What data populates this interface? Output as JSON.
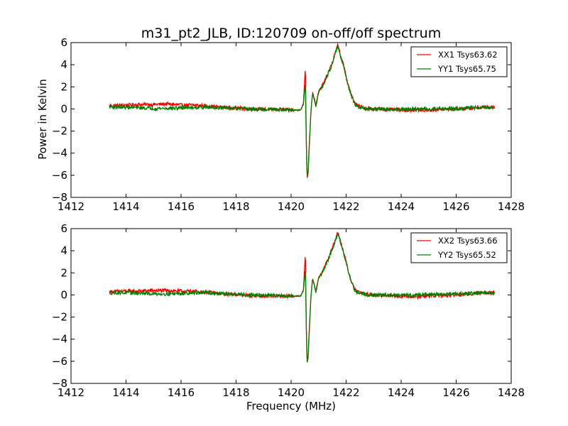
{
  "title": "m31_pt2_JLB, ID:120709 on-off/off spectrum",
  "ylabel": "Power in Kelvin",
  "xlabel": "Frequency (MHz)",
  "chart_data": [
    {
      "type": "line",
      "xlim": [
        1412,
        1428
      ],
      "ylim": [
        -8,
        6
      ],
      "xticks": [
        1412,
        1414,
        1416,
        1418,
        1420,
        1422,
        1424,
        1426,
        1428
      ],
      "yticks": [
        -8,
        -6,
        -4,
        -2,
        0,
        2,
        4,
        6
      ],
      "legend_position": "top-right",
      "grid": false,
      "series": [
        {
          "name": "XX1 Tsys63.62",
          "color": "#ff0000",
          "x": [
            1413.4,
            1414.0,
            1414.5,
            1415.0,
            1415.5,
            1416.0,
            1416.5,
            1417.0,
            1417.5,
            1418.0,
            1418.5,
            1419.0,
            1419.5,
            1420.0,
            1420.35,
            1420.45,
            1420.52,
            1420.55,
            1420.58,
            1420.62,
            1420.66,
            1420.72,
            1420.78,
            1420.84,
            1420.9,
            1421.0,
            1421.1,
            1421.2,
            1421.3,
            1421.4,
            1421.5,
            1421.6,
            1421.7,
            1421.8,
            1421.9,
            1422.0,
            1422.1,
            1422.2,
            1422.3,
            1422.4,
            1422.6,
            1422.8,
            1423.0,
            1423.5,
            1424.0,
            1424.5,
            1425.0,
            1425.5,
            1426.0,
            1426.5,
            1427.0,
            1427.4
          ],
          "y": [
            0.3,
            0.35,
            0.4,
            0.4,
            0.45,
            0.35,
            0.35,
            0.25,
            0.15,
            0.1,
            0.0,
            -0.05,
            -0.05,
            -0.1,
            -0.1,
            0.5,
            4.0,
            -2.5,
            -6.3,
            -5.8,
            -3.5,
            -0.3,
            1.5,
            1.0,
            0.3,
            1.6,
            2.0,
            2.4,
            3.0,
            3.6,
            4.2,
            5.0,
            5.8,
            4.8,
            4.0,
            3.0,
            2.0,
            1.2,
            0.6,
            0.3,
            0.15,
            0.05,
            0.0,
            -0.05,
            -0.1,
            -0.1,
            -0.1,
            -0.05,
            0.0,
            0.05,
            0.15,
            0.2
          ]
        },
        {
          "name": "YY1 Tsys65.75",
          "color": "#008000",
          "x": [
            1413.4,
            1414.0,
            1414.5,
            1415.0,
            1415.5,
            1416.0,
            1416.5,
            1417.0,
            1417.5,
            1418.0,
            1418.5,
            1419.0,
            1419.5,
            1420.0,
            1420.35,
            1420.45,
            1420.52,
            1420.55,
            1420.58,
            1420.62,
            1420.66,
            1420.72,
            1420.78,
            1420.84,
            1420.9,
            1421.0,
            1421.1,
            1421.2,
            1421.3,
            1421.4,
            1421.5,
            1421.6,
            1421.7,
            1421.8,
            1421.9,
            1422.0,
            1422.1,
            1422.2,
            1422.3,
            1422.4,
            1422.6,
            1422.8,
            1423.0,
            1423.5,
            1424.0,
            1424.5,
            1425.0,
            1425.5,
            1426.0,
            1426.5,
            1427.0,
            1427.4
          ],
          "y": [
            0.2,
            0.15,
            0.1,
            0.05,
            0.05,
            0.1,
            0.15,
            0.15,
            0.1,
            0.05,
            0.0,
            -0.05,
            -0.05,
            -0.1,
            -0.1,
            0.4,
            2.5,
            -2.8,
            -6.2,
            -5.5,
            -3.2,
            -0.2,
            1.4,
            0.9,
            0.2,
            1.5,
            1.9,
            2.3,
            2.9,
            3.5,
            4.1,
            5.0,
            5.7,
            4.7,
            3.9,
            2.9,
            1.9,
            1.1,
            0.5,
            0.25,
            0.1,
            0.0,
            0.0,
            -0.05,
            -0.05,
            0.0,
            0.0,
            0.05,
            0.05,
            0.1,
            0.15,
            0.1
          ]
        }
      ]
    },
    {
      "type": "line",
      "xlim": [
        1412,
        1428
      ],
      "ylim": [
        -8,
        6
      ],
      "xticks": [
        1412,
        1414,
        1416,
        1418,
        1420,
        1422,
        1424,
        1426,
        1428
      ],
      "yticks": [
        -8,
        -6,
        -4,
        -2,
        0,
        2,
        4,
        6
      ],
      "legend_position": "top-right",
      "grid": false,
      "series": [
        {
          "name": "XX2 Tsys63.66",
          "color": "#ff0000",
          "x": [
            1413.4,
            1414.0,
            1414.5,
            1415.0,
            1415.5,
            1416.0,
            1416.5,
            1417.0,
            1417.5,
            1418.0,
            1418.5,
            1419.0,
            1419.5,
            1420.0,
            1420.35,
            1420.45,
            1420.52,
            1420.55,
            1420.58,
            1420.62,
            1420.66,
            1420.72,
            1420.78,
            1420.84,
            1420.9,
            1421.0,
            1421.1,
            1421.2,
            1421.3,
            1421.4,
            1421.5,
            1421.6,
            1421.7,
            1421.8,
            1421.9,
            1422.0,
            1422.1,
            1422.2,
            1422.3,
            1422.4,
            1422.6,
            1422.8,
            1423.0,
            1423.5,
            1424.0,
            1424.5,
            1425.0,
            1425.5,
            1426.0,
            1426.5,
            1427.0,
            1427.4
          ],
          "y": [
            0.3,
            0.35,
            0.35,
            0.4,
            0.4,
            0.35,
            0.3,
            0.25,
            0.1,
            0.05,
            -0.05,
            -0.1,
            -0.1,
            -0.1,
            -0.1,
            0.5,
            4.0,
            -2.4,
            -6.2,
            -5.7,
            -3.4,
            -0.2,
            1.5,
            1.0,
            0.3,
            1.6,
            2.0,
            2.4,
            3.0,
            3.6,
            4.3,
            5.0,
            5.7,
            4.8,
            4.0,
            3.0,
            2.0,
            1.2,
            0.6,
            0.3,
            0.15,
            0.05,
            0.0,
            -0.05,
            -0.1,
            -0.15,
            -0.1,
            -0.05,
            0.0,
            0.1,
            0.2,
            0.25
          ]
        },
        {
          "name": "YY2 Tsys65.52",
          "color": "#008000",
          "x": [
            1413.4,
            1414.0,
            1414.5,
            1415.0,
            1415.5,
            1416.0,
            1416.5,
            1417.0,
            1417.5,
            1418.0,
            1418.5,
            1419.0,
            1419.5,
            1420.0,
            1420.35,
            1420.45,
            1420.52,
            1420.55,
            1420.58,
            1420.62,
            1420.66,
            1420.72,
            1420.78,
            1420.84,
            1420.9,
            1421.0,
            1421.1,
            1421.2,
            1421.3,
            1421.4,
            1421.5,
            1421.6,
            1421.7,
            1421.8,
            1421.9,
            1422.0,
            1422.1,
            1422.2,
            1422.3,
            1422.4,
            1422.6,
            1422.8,
            1423.0,
            1423.5,
            1424.0,
            1424.5,
            1425.0,
            1425.5,
            1426.0,
            1426.5,
            1427.0,
            1427.4
          ],
          "y": [
            0.2,
            0.2,
            0.15,
            0.1,
            0.1,
            0.15,
            0.2,
            0.2,
            0.1,
            0.05,
            0.0,
            -0.05,
            -0.05,
            -0.1,
            -0.1,
            0.4,
            2.4,
            -2.8,
            -6.2,
            -5.4,
            -3.1,
            -0.2,
            1.4,
            0.9,
            0.2,
            1.5,
            1.9,
            2.3,
            2.9,
            3.5,
            4.1,
            4.9,
            5.6,
            4.7,
            3.9,
            2.9,
            1.9,
            1.1,
            0.5,
            0.25,
            0.1,
            0.0,
            0.0,
            0.0,
            -0.05,
            0.0,
            0.05,
            0.05,
            0.1,
            0.15,
            0.2,
            0.15
          ]
        }
      ]
    }
  ]
}
